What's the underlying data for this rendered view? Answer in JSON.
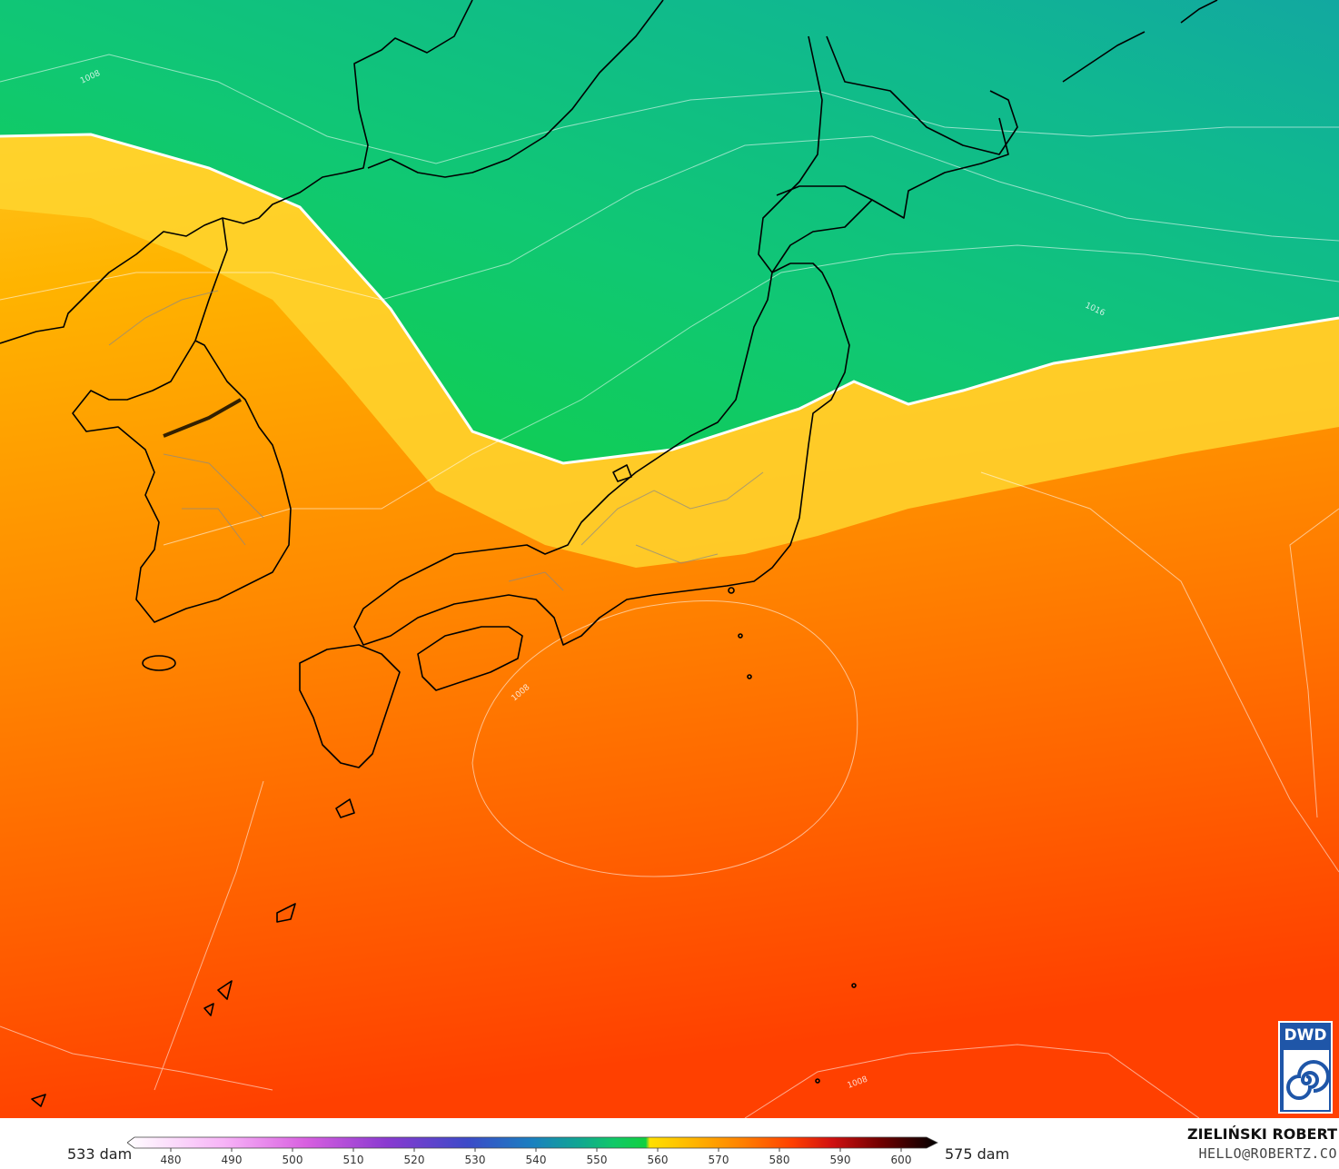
{
  "map": {
    "contour_labels": [
      "1008",
      "1016",
      "1008",
      "1008"
    ]
  },
  "colors": {
    "green_dark": "#0dd044",
    "green": "#10cc68",
    "teal": "#10b48e",
    "yellow": "#ffd52e",
    "orange": "#ff9a00",
    "red_orange": "#ff4a00",
    "coast": "#000000",
    "isobar": "#ffffff"
  },
  "legend": {
    "min_label": "533 dam",
    "max_label": "575 dam",
    "ticks": [
      "480",
      "490",
      "500",
      "510",
      "520",
      "530",
      "540",
      "550",
      "560",
      "570",
      "580",
      "590",
      "600"
    ]
  },
  "credits": {
    "author": "ZIELIŃSKI ROBERT",
    "email": "HELLO@ROBERTZ.CO",
    "logo_text": "DWD"
  }
}
